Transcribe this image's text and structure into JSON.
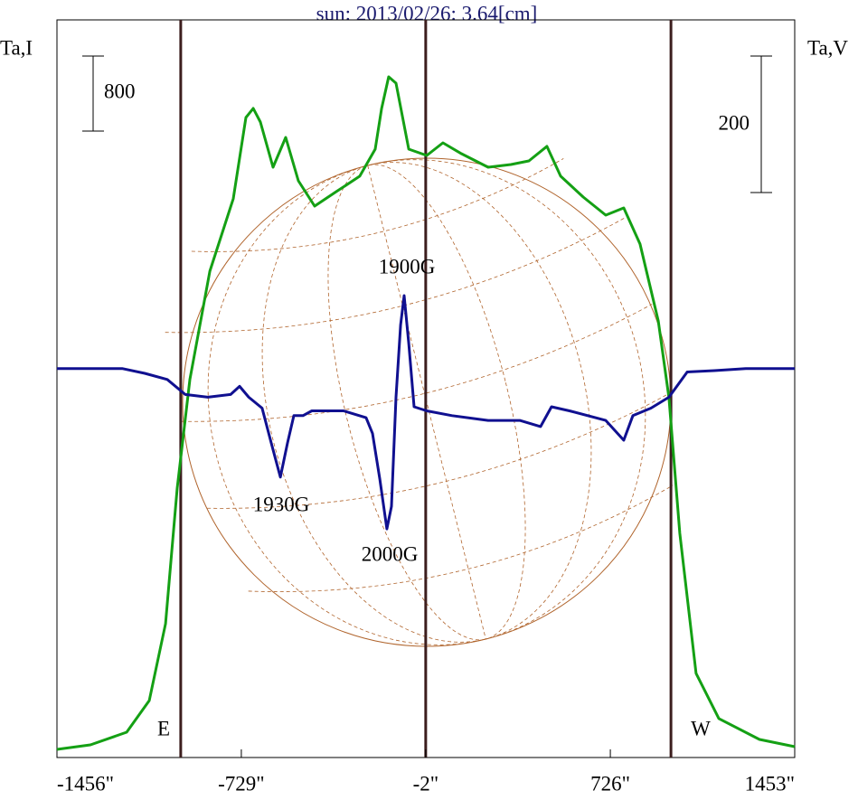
{
  "chart_data": {
    "type": "line",
    "title": "sun: 2013/02/26: 3.64[cm]",
    "xlim": [
      -1456,
      1453
    ],
    "xticks": [
      {
        "value": -1456,
        "label": "-1456\""
      },
      {
        "value": -729,
        "label": "-729\""
      },
      {
        "value": -2,
        "label": "-2\""
      },
      {
        "value": 726,
        "label": "726\""
      },
      {
        "value": 1453,
        "label": "1453\""
      }
    ],
    "ylim": [
      0,
      7866
    ],
    "y2lim": [
      -570,
      511
    ],
    "scale_bars": [
      {
        "axis": "y",
        "value": 800
      },
      {
        "axis": "y2",
        "value": 200
      }
    ],
    "vlines": [
      -968,
      -2,
      965
    ],
    "limb_labels": [
      "E",
      "W"
    ],
    "annotations": [
      "1900G",
      "1930G",
      "2000G"
    ],
    "series": [
      {
        "name": "Ta,I",
        "color": "#14a014",
        "x": [
          -1456,
          -1324,
          -1181,
          -1092,
          -1028,
          -982,
          -932,
          -853,
          -761,
          -711,
          -682,
          -654,
          -604,
          -554,
          -504,
          -440,
          -354,
          -262,
          -201,
          -176,
          -148,
          -119,
          -69,
          2,
          66,
          138,
          244,
          334,
          405,
          476,
          530,
          619,
          708,
          779,
          843,
          915,
          957,
          1000,
          1064,
          1154,
          1314,
          1453
        ],
        "values": [
          87,
          135,
          270,
          607,
          1427,
          2873,
          4030,
          5186,
          5958,
          6825,
          6922,
          6777,
          6295,
          6613,
          6150,
          5880,
          6035,
          6199,
          6488,
          6922,
          7259,
          7191,
          6488,
          6420,
          6555,
          6440,
          6295,
          6324,
          6362,
          6517,
          6199,
          5977,
          5784,
          5861,
          5476,
          4656,
          3837,
          2391,
          897,
          415,
          193,
          116
        ]
      },
      {
        "name": "Ta,V",
        "color": "#101090",
        "axis": "y2",
        "x": [
          -1456,
          -1199,
          -1110,
          -1021,
          -950,
          -861,
          -771,
          -736,
          -700,
          -647,
          -611,
          -575,
          -547,
          -522,
          -486,
          -451,
          -326,
          -237,
          -212,
          -183,
          -155,
          -137,
          -119,
          -101,
          -87,
          -69,
          -48,
          2,
          102,
          244,
          369,
          451,
          494,
          565,
          708,
          779,
          815,
          886,
          957,
          1029,
          1136,
          1260,
          1453
        ],
        "values": [
          0,
          0,
          -7,
          -16,
          -38,
          -42,
          -38,
          -26,
          -42,
          -58,
          -109,
          -159,
          -109,
          -69,
          -69,
          -62,
          -62,
          -72,
          -95,
          -162,
          -235,
          -202,
          -42,
          64,
          107,
          37,
          -56,
          -62,
          -69,
          -76,
          -76,
          -85,
          -56,
          -62,
          -76,
          -105,
          -69,
          -58,
          -42,
          -5,
          -3,
          0,
          0
        ]
      }
    ]
  }
}
